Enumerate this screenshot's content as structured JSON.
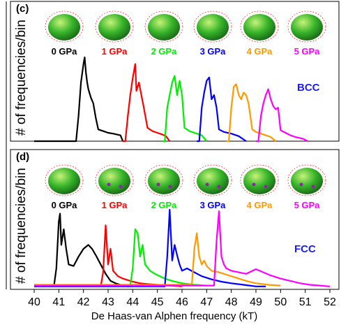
{
  "figure": {
    "x_axis_label": "De Haas-van Alphen frequency (kT)",
    "x_ticks": [
      "40",
      "41",
      "42",
      "43",
      "44",
      "45",
      "46",
      "47",
      "48",
      "49",
      "50",
      "51",
      "52"
    ]
  },
  "chart_data": [
    {
      "type": "line",
      "panel": "(c)",
      "structure_label": "BCC",
      "ylabel": "# of frequencies/bin",
      "xlabel": "",
      "xlim": [
        40,
        52
      ],
      "series": [
        {
          "name": "0 GPa",
          "color": "#000000",
          "x": [
            40.0,
            41.7,
            41.8,
            41.9,
            42.0,
            42.05,
            42.1,
            42.15,
            42.2,
            42.3,
            42.4,
            42.5,
            42.6,
            42.8,
            43.0,
            43.2,
            43.5,
            43.6
          ],
          "y": [
            0,
            0,
            0.3,
            0.7,
            0.92,
            1.0,
            0.82,
            0.7,
            0.62,
            0.52,
            0.45,
            0.28,
            0.14,
            0.12,
            0.1,
            0.09,
            0.07,
            0
          ]
        },
        {
          "name": "1 GPa",
          "color": "#ff0000",
          "x": [
            43.6,
            43.7,
            43.8,
            43.9,
            44.0,
            44.1,
            44.15,
            44.25,
            44.35,
            44.45,
            44.6,
            44.8,
            45.0,
            45.2,
            45.35,
            45.5
          ],
          "y": [
            0,
            0,
            0.3,
            0.55,
            0.75,
            0.92,
            0.6,
            0.7,
            0.55,
            0.4,
            0.16,
            0.12,
            0.1,
            0.08,
            0.06,
            0
          ]
        },
        {
          "name": "2 GPa",
          "color": "#00ee00",
          "x": [
            45.2,
            45.3,
            45.4,
            45.5,
            45.6,
            45.7,
            45.8,
            45.9,
            46.0,
            46.1,
            46.3,
            46.5,
            46.8,
            47.0
          ],
          "y": [
            0,
            0,
            0.4,
            0.55,
            0.7,
            0.78,
            0.55,
            0.72,
            0.55,
            0.16,
            0.12,
            0.1,
            0.07,
            0
          ]
        },
        {
          "name": "3 GPa",
          "color": "#0000ff",
          "x": [
            46.6,
            46.7,
            46.8,
            46.9,
            47.0,
            47.1,
            47.2,
            47.3,
            47.4,
            47.5,
            47.7,
            48.0,
            48.3,
            48.6
          ],
          "y": [
            0,
            0,
            0.4,
            0.58,
            0.72,
            0.76,
            0.5,
            0.55,
            0.4,
            0.14,
            0.11,
            0.09,
            0.06,
            0
          ]
        },
        {
          "name": "4 GPa",
          "color": "#ff9900",
          "x": [
            47.8,
            47.9,
            48.0,
            48.1,
            48.2,
            48.3,
            48.4,
            48.5,
            48.6,
            48.7,
            48.85,
            49.0,
            49.2,
            49.4,
            49.6,
            49.8
          ],
          "y": [
            0,
            0,
            0.4,
            0.65,
            0.68,
            0.55,
            0.5,
            0.58,
            0.55,
            0.45,
            0.14,
            0.11,
            0.09,
            0.07,
            0.05,
            0
          ]
        },
        {
          "name": "5 GPa",
          "color": "#ff00ff",
          "x": [
            49.0,
            49.1,
            49.2,
            49.3,
            49.4,
            49.5,
            49.6,
            49.7,
            49.8,
            49.9,
            50.0,
            50.2,
            50.4,
            50.6,
            50.9,
            51.1
          ],
          "y": [
            0,
            0,
            0.3,
            0.45,
            0.55,
            0.62,
            0.5,
            0.42,
            0.38,
            0.4,
            0.13,
            0.1,
            0.07,
            0.05,
            0.03,
            0
          ]
        }
      ]
    },
    {
      "type": "line",
      "panel": "(d)",
      "structure_label": "FCC",
      "ylabel": "# of frequencies/bin",
      "xlabel": "",
      "xlim": [
        40,
        52
      ],
      "series": [
        {
          "name": "0 GPa",
          "color": "#000000",
          "x": [
            40.0,
            40.8,
            40.9,
            41.0,
            41.05,
            41.1,
            41.2,
            41.3,
            41.4,
            41.6,
            41.8,
            42.0,
            42.2,
            42.35,
            42.5,
            42.7,
            42.9,
            43.1,
            43.3,
            43.5,
            43.8,
            44.0
          ],
          "y": [
            0.02,
            0.02,
            0.25,
            0.85,
            0.95,
            0.55,
            0.75,
            0.5,
            0.3,
            0.28,
            0.4,
            0.5,
            0.55,
            0.5,
            0.42,
            0.3,
            0.18,
            0.09,
            0.06,
            0.04,
            0.02,
            0.02
          ]
        },
        {
          "name": "1 GPa",
          "color": "#ff0000",
          "x": [
            40.0,
            42.7,
            42.8,
            42.9,
            43.0,
            43.1,
            43.2,
            43.4,
            43.6,
            43.8,
            44.0,
            44.3,
            44.6,
            45.0,
            45.5,
            46.0
          ],
          "y": [
            0.02,
            0.02,
            0.2,
            0.8,
            0.3,
            0.5,
            0.22,
            0.15,
            0.12,
            0.1,
            0.08,
            0.06,
            0.05,
            0.04,
            0.03,
            0.02
          ]
        },
        {
          "name": "2 GPa",
          "color": "#00ee00",
          "x": [
            40.0,
            43.9,
            44.0,
            44.1,
            44.2,
            44.3,
            44.4,
            44.5,
            44.7,
            44.9,
            45.1,
            45.3,
            45.6,
            46.0,
            46.5,
            47.0
          ],
          "y": [
            0.03,
            0.03,
            0.25,
            0.75,
            0.7,
            0.4,
            0.55,
            0.3,
            0.22,
            0.18,
            0.15,
            0.12,
            0.09,
            0.06,
            0.04,
            0.03
          ]
        },
        {
          "name": "3 GPa",
          "color": "#0000ff",
          "x": [
            40.0,
            45.3,
            45.4,
            45.5,
            45.6,
            45.7,
            45.8,
            45.9,
            46.0,
            46.2,
            46.5,
            46.8,
            47.2,
            47.6,
            48.0,
            48.5,
            49.0,
            49.4
          ],
          "y": [
            0.02,
            0.02,
            0.4,
            1.0,
            0.35,
            0.55,
            0.42,
            0.3,
            0.22,
            0.25,
            0.2,
            0.15,
            0.11,
            0.08,
            0.06,
            0.04,
            0.02,
            0.02
          ]
        },
        {
          "name": "4 GPa",
          "color": "#ff9900",
          "x": [
            40.0,
            46.4,
            46.5,
            46.6,
            46.7,
            46.8,
            46.9,
            47.0,
            47.2,
            47.5,
            47.8,
            48.0,
            48.3,
            48.6,
            49.0,
            49.5,
            50.0
          ],
          "y": [
            0.04,
            0.04,
            0.5,
            0.7,
            0.4,
            0.3,
            0.35,
            0.28,
            0.22,
            0.2,
            0.17,
            0.15,
            0.12,
            0.09,
            0.06,
            0.04,
            0.03
          ]
        },
        {
          "name": "5 GPa",
          "color": "#ff00ff",
          "x": [
            40.0,
            47.3,
            47.4,
            47.5,
            47.6,
            47.7,
            47.8,
            48.0,
            48.3,
            48.6,
            49.0,
            49.3,
            49.6,
            50.0,
            50.4,
            50.8,
            51.2,
            51.6,
            52.0
          ],
          "y": [
            0.03,
            0.03,
            0.6,
            0.98,
            0.4,
            0.3,
            0.25,
            0.22,
            0.2,
            0.18,
            0.24,
            0.2,
            0.16,
            0.12,
            0.09,
            0.06,
            0.04,
            0.03,
            0.02
          ]
        }
      ]
    }
  ]
}
